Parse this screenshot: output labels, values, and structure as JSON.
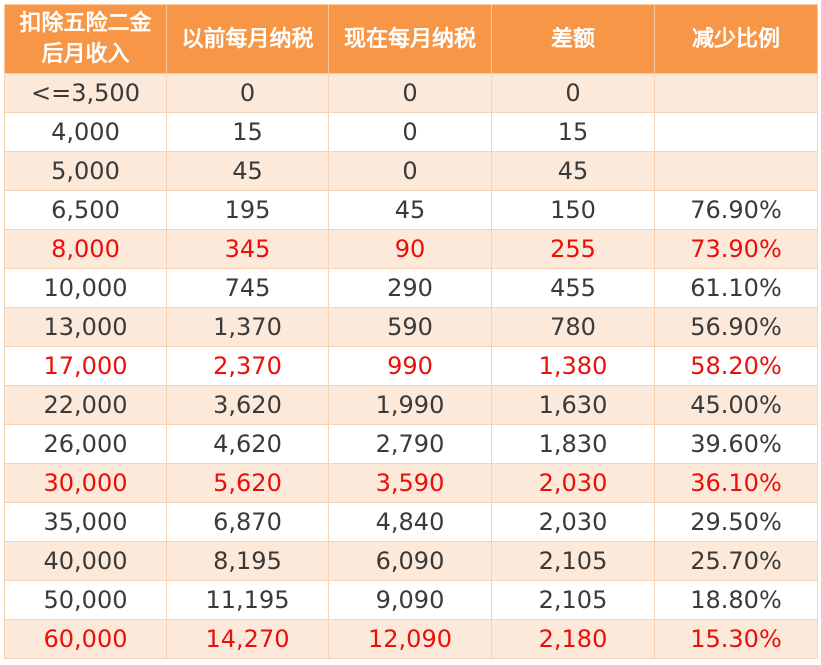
{
  "colors": {
    "header_bg": "#f79646",
    "header_text": "#ffffff",
    "band_bg": "#fde9d9",
    "highlight_text": "#e8100a",
    "normal_text": "#3a3a3a"
  },
  "table": {
    "headers": [
      [
        "扣除五险二金",
        "后月收入"
      ],
      [
        "以前每月纳税"
      ],
      [
        "现在每月纳税"
      ],
      [
        "差额"
      ],
      [
        "减少比例"
      ]
    ],
    "rows": [
      {
        "highlight": false,
        "cells": [
          "<=3,500",
          "0",
          "0",
          "0",
          ""
        ]
      },
      {
        "highlight": false,
        "cells": [
          "4,000",
          "15",
          "0",
          "15",
          ""
        ]
      },
      {
        "highlight": false,
        "cells": [
          "5,000",
          "45",
          "0",
          "45",
          ""
        ]
      },
      {
        "highlight": false,
        "cells": [
          "6,500",
          "195",
          "45",
          "150",
          "76.90%"
        ]
      },
      {
        "highlight": true,
        "cells": [
          "8,000",
          "345",
          "90",
          "255",
          "73.90%"
        ]
      },
      {
        "highlight": false,
        "cells": [
          "10,000",
          "745",
          "290",
          "455",
          "61.10%"
        ]
      },
      {
        "highlight": false,
        "cells": [
          "13,000",
          "1,370",
          "590",
          "780",
          "56.90%"
        ]
      },
      {
        "highlight": true,
        "cells": [
          "17,000",
          "2,370",
          "990",
          "1,380",
          "58.20%"
        ]
      },
      {
        "highlight": false,
        "cells": [
          "22,000",
          "3,620",
          "1,990",
          "1,630",
          "45.00%"
        ]
      },
      {
        "highlight": false,
        "cells": [
          "26,000",
          "4,620",
          "2,790",
          "1,830",
          "39.60%"
        ]
      },
      {
        "highlight": true,
        "cells": [
          "30,000",
          "5,620",
          "3,590",
          "2,030",
          "36.10%"
        ]
      },
      {
        "highlight": false,
        "cells": [
          "35,000",
          "6,870",
          "4,840",
          "2,030",
          "29.50%"
        ]
      },
      {
        "highlight": false,
        "cells": [
          "40,000",
          "8,195",
          "6,090",
          "2,105",
          "25.70%"
        ]
      },
      {
        "highlight": false,
        "cells": [
          "50,000",
          "11,195",
          "9,090",
          "2,105",
          "18.80%"
        ]
      },
      {
        "highlight": true,
        "cells": [
          "60,000",
          "14,270",
          "12,090",
          "2,180",
          "15.30%"
        ]
      }
    ]
  }
}
